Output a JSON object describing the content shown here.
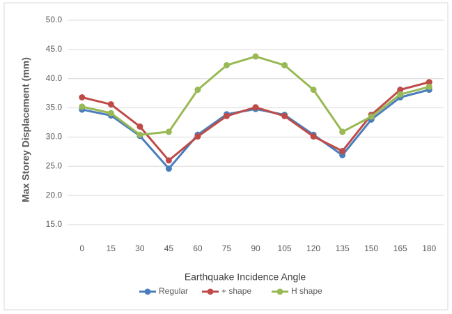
{
  "chart_data": {
    "type": "line",
    "x_label": "Earthquake Incidence Angle",
    "y_label": "Max Storey Displacement (mm)",
    "categories": [
      0,
      15,
      30,
      45,
      60,
      75,
      90,
      105,
      120,
      135,
      150,
      165,
      180
    ],
    "series": [
      {
        "name": "Regular",
        "color": "#4a7ebb",
        "values": [
          34.7,
          33.7,
          30.2,
          24.6,
          30.4,
          33.9,
          34.8,
          33.8,
          30.4,
          26.9,
          33.0,
          36.8,
          38.1
        ]
      },
      {
        "name": "+ shape",
        "color": "#be4b48",
        "values": [
          36.8,
          35.6,
          31.8,
          26.0,
          30.1,
          33.6,
          35.1,
          33.6,
          30.1,
          27.6,
          33.8,
          38.1,
          39.4
        ]
      },
      {
        "name": "H shape",
        "color": "#98b954",
        "values": [
          35.2,
          34.1,
          30.4,
          30.9,
          38.1,
          42.3,
          43.8,
          42.3,
          38.1,
          30.9,
          33.5,
          37.3,
          38.6
        ]
      }
    ],
    "ylim": [
      15,
      50
    ],
    "yticks": [
      {
        "value": 15,
        "label": "15.0"
      },
      {
        "value": 20,
        "label": "20.0"
      },
      {
        "value": 25,
        "label": "25.0"
      },
      {
        "value": 30,
        "label": "30.0"
      },
      {
        "value": 35,
        "label": "35.0"
      },
      {
        "value": 40,
        "label": "40.0"
      },
      {
        "value": 45,
        "label": "45.0"
      },
      {
        "value": 50,
        "label": "50.0"
      }
    ],
    "grid": true,
    "legend": "bottom"
  }
}
